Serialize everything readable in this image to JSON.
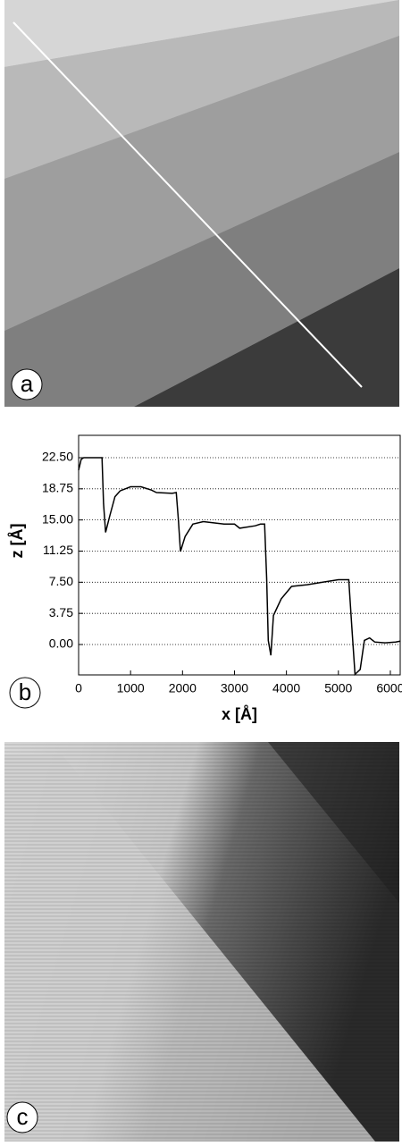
{
  "panels": {
    "a": {
      "label": "a"
    },
    "b": {
      "label": "b"
    },
    "c": {
      "label": "c"
    }
  },
  "chart_data": {
    "type": "line",
    "xlabel": "x [Å]",
    "ylabel": "z [Å]",
    "color": "#000000",
    "grid": true,
    "xlim": [
      0,
      6190
    ],
    "ylim": [
      -3.66,
      25.19
    ],
    "xticks": [
      0,
      1000,
      2000,
      3000,
      4000,
      5000,
      6000
    ],
    "yticks": [
      {
        "value": 0,
        "label": "0.00"
      },
      {
        "value": 3.75,
        "label": "3.75"
      },
      {
        "value": 7.5,
        "label": "7.50"
      },
      {
        "value": 11.25,
        "label": "11.25"
      },
      {
        "value": 15,
        "label": "15.00"
      },
      {
        "value": 18.75,
        "label": "18.75"
      },
      {
        "value": 22.5,
        "label": "22.50"
      }
    ],
    "x": [
      0,
      50,
      100,
      450,
      480,
      520,
      600,
      700,
      800,
      1000,
      1200,
      1400,
      1500,
      1800,
      1880,
      1920,
      1960,
      2050,
      2200,
      2400,
      2800,
      3000,
      3100,
      3400,
      3500,
      3580,
      3620,
      3650,
      3700,
      3750,
      3900,
      4100,
      4400,
      4700,
      5000,
      5200,
      5260,
      5320,
      5420,
      5500,
      5600,
      5700,
      5900,
      6100,
      6190
    ],
    "values": [
      21.0,
      22.3,
      22.5,
      22.5,
      17.0,
      13.5,
      15.5,
      17.8,
      18.5,
      19.0,
      19.0,
      18.6,
      18.3,
      18.2,
      18.3,
      15.0,
      11.2,
      13.0,
      14.5,
      14.8,
      14.5,
      14.5,
      14.0,
      14.3,
      14.5,
      14.5,
      8.0,
      0.5,
      -1.3,
      3.5,
      5.5,
      7.0,
      7.2,
      7.5,
      7.8,
      7.8,
      2.0,
      -3.6,
      -3.0,
      0.5,
      0.8,
      0.3,
      0.2,
      0.3,
      0.4
    ]
  }
}
